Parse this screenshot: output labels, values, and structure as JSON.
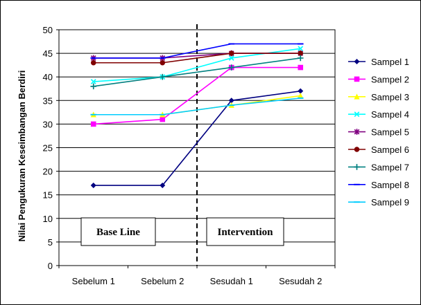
{
  "chart_data": {
    "type": "line",
    "title": "",
    "xlabel": "",
    "ylabel": "Nilai Pengukuran Keseimbangan Berdiri",
    "categories": [
      "Sebelum 1",
      "Sebelum 2",
      "Sesudah 1",
      "Sesudah 2"
    ],
    "ylim": [
      0,
      50
    ],
    "yticks": [
      0,
      5,
      10,
      15,
      20,
      25,
      30,
      35,
      40,
      45,
      50
    ],
    "grid": true,
    "legend_position": "right",
    "series": [
      {
        "name": "Sampel 1",
        "values": [
          17,
          17,
          35,
          37
        ],
        "color": "#000080",
        "marker": "diamond"
      },
      {
        "name": "Sampel 2",
        "values": [
          30,
          31,
          42,
          42
        ],
        "color": "#ff00ff",
        "marker": "square"
      },
      {
        "name": "Sampel 3",
        "values": [
          32,
          32,
          34,
          36
        ],
        "color": "#ffff00",
        "marker": "triangle"
      },
      {
        "name": "Sampel 4",
        "values": [
          39,
          40,
          44,
          46
        ],
        "color": "#00ffff",
        "marker": "x"
      },
      {
        "name": "Sampel 5",
        "values": [
          44,
          44,
          45,
          45
        ],
        "color": "#800080",
        "marker": "star"
      },
      {
        "name": "Sampel 6",
        "values": [
          43,
          43,
          45,
          45
        ],
        "color": "#800000",
        "marker": "circle"
      },
      {
        "name": "Sampel 7",
        "values": [
          38,
          40,
          42,
          44
        ],
        "color": "#008080",
        "marker": "plus"
      },
      {
        "name": "Sampel 8",
        "values": [
          44,
          44,
          47,
          47
        ],
        "color": "#0000ff",
        "marker": "dash"
      },
      {
        "name": "Sampel 9",
        "values": [
          32,
          32,
          34,
          35.5
        ],
        "color": "#00ccff",
        "marker": "dash"
      }
    ],
    "annotations": {
      "phase_divider_between": [
        "Sebelum 2",
        "Sesudah 1"
      ],
      "baseline_label": "Base Line",
      "intervention_label": "Intervention"
    }
  }
}
